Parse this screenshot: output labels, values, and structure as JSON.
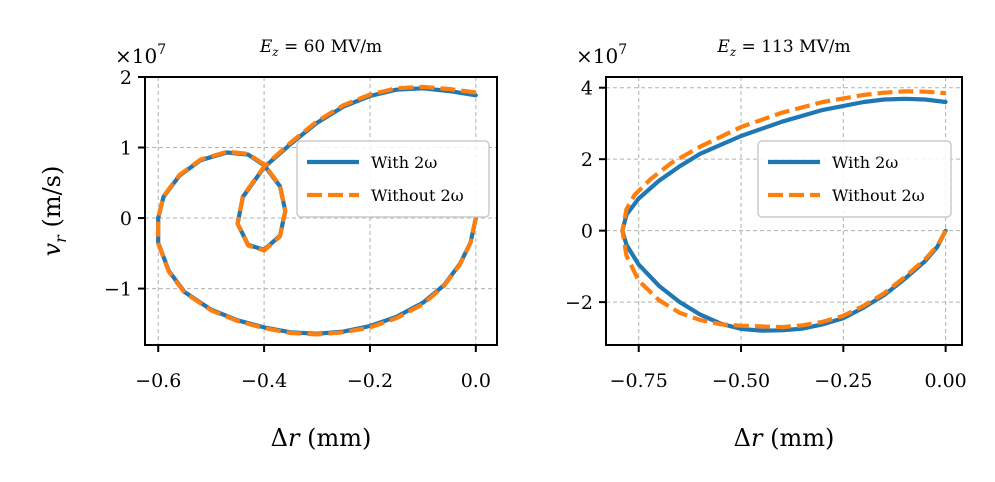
{
  "figure": {
    "background": "#ffffff"
  },
  "chart_data": [
    {
      "type": "line",
      "title": "E_z = 60 MV/m",
      "title_parts": {
        "symbol": "E",
        "sub": "z",
        "rest": " = 60 MV/m"
      },
      "xlabel": "Δr (mm)",
      "xlabel_parts": {
        "symbol": "Δ",
        "var": "r",
        "rest": " (mm)"
      },
      "ylabel": "v_r (m/s)",
      "ylabel_parts": {
        "symbol": "v",
        "sub": "r",
        "rest": " (m/s)"
      },
      "y_offset_text": "×10^7",
      "y_offset_parts": {
        "base": "×10",
        "exp": "7"
      },
      "xlim": [
        -0.625,
        0.04
      ],
      "ylim": [
        -1.8,
        2.0
      ],
      "xticks": [
        -0.6,
        -0.4,
        -0.2,
        0.0
      ],
      "xtick_labels": [
        "−0.6",
        "−0.4",
        "−0.2",
        "0.0"
      ],
      "yticks": [
        -1,
        0,
        1,
        2
      ],
      "ytick_labels": [
        "−1",
        "0",
        "1",
        "2"
      ],
      "grid": true,
      "legend_position": "center-right",
      "series": [
        {
          "name": "With 2ω",
          "style": "solid",
          "color": "#1f77b4",
          "points": [
            [
              0.0,
              0.0
            ],
            [
              -0.01,
              -0.35
            ],
            [
              -0.03,
              -0.65
            ],
            [
              -0.06,
              -0.95
            ],
            [
              -0.1,
              -1.2
            ],
            [
              -0.15,
              -1.4
            ],
            [
              -0.2,
              -1.53
            ],
            [
              -0.25,
              -1.61
            ],
            [
              -0.3,
              -1.64
            ],
            [
              -0.35,
              -1.62
            ],
            [
              -0.4,
              -1.55
            ],
            [
              -0.45,
              -1.45
            ],
            [
              -0.5,
              -1.3
            ],
            [
              -0.55,
              -1.05
            ],
            [
              -0.58,
              -0.75
            ],
            [
              -0.6,
              -0.35
            ],
            [
              -0.6,
              0.0
            ],
            [
              -0.59,
              0.3
            ],
            [
              -0.56,
              0.6
            ],
            [
              -0.52,
              0.82
            ],
            [
              -0.47,
              0.93
            ],
            [
              -0.43,
              0.9
            ],
            [
              -0.4,
              0.75
            ],
            [
              -0.37,
              0.45
            ],
            [
              -0.36,
              0.1
            ],
            [
              -0.37,
              -0.25
            ],
            [
              -0.4,
              -0.45
            ],
            [
              -0.43,
              -0.38
            ],
            [
              -0.45,
              -0.08
            ],
            [
              -0.44,
              0.3
            ],
            [
              -0.4,
              0.72
            ],
            [
              -0.35,
              1.05
            ],
            [
              -0.3,
              1.35
            ],
            [
              -0.25,
              1.58
            ],
            [
              -0.2,
              1.73
            ],
            [
              -0.15,
              1.82
            ],
            [
              -0.1,
              1.84
            ],
            [
              -0.05,
              1.8
            ],
            [
              0.0,
              1.74
            ]
          ]
        },
        {
          "name": "Without 2ω",
          "style": "dashed",
          "color": "#ff7f0e",
          "points": [
            [
              0.0,
              0.0
            ],
            [
              -0.01,
              -0.35
            ],
            [
              -0.03,
              -0.66
            ],
            [
              -0.06,
              -0.96
            ],
            [
              -0.1,
              -1.22
            ],
            [
              -0.15,
              -1.42
            ],
            [
              -0.2,
              -1.55
            ],
            [
              -0.25,
              -1.62
            ],
            [
              -0.3,
              -1.65
            ],
            [
              -0.35,
              -1.63
            ],
            [
              -0.4,
              -1.56
            ],
            [
              -0.45,
              -1.46
            ],
            [
              -0.5,
              -1.31
            ],
            [
              -0.55,
              -1.06
            ],
            [
              -0.58,
              -0.76
            ],
            [
              -0.6,
              -0.36
            ],
            [
              -0.6,
              0.0
            ],
            [
              -0.59,
              0.31
            ],
            [
              -0.56,
              0.61
            ],
            [
              -0.52,
              0.83
            ],
            [
              -0.47,
              0.94
            ],
            [
              -0.43,
              0.91
            ],
            [
              -0.4,
              0.76
            ],
            [
              -0.37,
              0.46
            ],
            [
              -0.36,
              0.1
            ],
            [
              -0.37,
              -0.26
            ],
            [
              -0.4,
              -0.46
            ],
            [
              -0.43,
              -0.39
            ],
            [
              -0.45,
              -0.08
            ],
            [
              -0.44,
              0.31
            ],
            [
              -0.4,
              0.73
            ],
            [
              -0.35,
              1.07
            ],
            [
              -0.3,
              1.37
            ],
            [
              -0.25,
              1.6
            ],
            [
              -0.2,
              1.75
            ],
            [
              -0.15,
              1.84
            ],
            [
              -0.1,
              1.86
            ],
            [
              -0.05,
              1.83
            ],
            [
              0.0,
              1.78
            ]
          ]
        }
      ]
    },
    {
      "type": "line",
      "title": "E_z = 113 MV/m",
      "title_parts": {
        "symbol": "E",
        "sub": "z",
        "rest": " = 113 MV/m"
      },
      "xlabel": "Δr (mm)",
      "xlabel_parts": {
        "symbol": "Δ",
        "var": "r",
        "rest": " (mm)"
      },
      "ylabel": "",
      "ylabel_parts": null,
      "y_offset_text": "×10^7",
      "y_offset_parts": {
        "base": "×10",
        "exp": "7"
      },
      "xlim": [
        -0.83,
        0.04
      ],
      "ylim": [
        -3.2,
        4.3
      ],
      "xticks": [
        -0.75,
        -0.5,
        -0.25,
        0.0
      ],
      "xtick_labels": [
        "−0.75",
        "−0.50",
        "−0.25",
        "0.00"
      ],
      "yticks": [
        -2,
        0,
        2,
        4
      ],
      "ytick_labels": [
        "−2",
        "0",
        "2",
        "4"
      ],
      "grid": true,
      "legend_position": "center-right",
      "series": [
        {
          "name": "With 2ω",
          "style": "solid",
          "color": "#1f77b4",
          "points": [
            [
              0.0,
              0.0
            ],
            [
              -0.02,
              -0.45
            ],
            [
              -0.05,
              -0.85
            ],
            [
              -0.1,
              -1.35
            ],
            [
              -0.15,
              -1.8
            ],
            [
              -0.2,
              -2.15
            ],
            [
              -0.25,
              -2.45
            ],
            [
              -0.3,
              -2.62
            ],
            [
              -0.35,
              -2.74
            ],
            [
              -0.4,
              -2.79
            ],
            [
              -0.45,
              -2.8
            ],
            [
              -0.5,
              -2.75
            ],
            [
              -0.55,
              -2.6
            ],
            [
              -0.6,
              -2.35
            ],
            [
              -0.65,
              -2.0
            ],
            [
              -0.7,
              -1.55
            ],
            [
              -0.75,
              -0.95
            ],
            [
              -0.78,
              -0.4
            ],
            [
              -0.79,
              0.0
            ],
            [
              -0.78,
              0.45
            ],
            [
              -0.75,
              0.9
            ],
            [
              -0.7,
              1.4
            ],
            [
              -0.65,
              1.8
            ],
            [
              -0.6,
              2.15
            ],
            [
              -0.5,
              2.65
            ],
            [
              -0.4,
              3.05
            ],
            [
              -0.3,
              3.38
            ],
            [
              -0.2,
              3.6
            ],
            [
              -0.15,
              3.67
            ],
            [
              -0.1,
              3.69
            ],
            [
              -0.05,
              3.67
            ],
            [
              0.0,
              3.6
            ]
          ]
        },
        {
          "name": "Without 2ω",
          "style": "dashed",
          "color": "#ff7f0e",
          "points": [
            [
              0.0,
              0.0
            ],
            [
              -0.02,
              -0.42
            ],
            [
              -0.05,
              -0.8
            ],
            [
              -0.1,
              -1.3
            ],
            [
              -0.15,
              -1.75
            ],
            [
              -0.2,
              -2.1
            ],
            [
              -0.25,
              -2.38
            ],
            [
              -0.3,
              -2.55
            ],
            [
              -0.35,
              -2.65
            ],
            [
              -0.4,
              -2.7
            ],
            [
              -0.45,
              -2.68
            ],
            [
              -0.5,
              -2.66
            ],
            [
              -0.55,
              -2.62
            ],
            [
              -0.6,
              -2.5
            ],
            [
              -0.65,
              -2.3
            ],
            [
              -0.7,
              -1.95
            ],
            [
              -0.75,
              -1.4
            ],
            [
              -0.78,
              -0.7
            ],
            [
              -0.79,
              0.0
            ],
            [
              -0.78,
              0.6
            ],
            [
              -0.76,
              1.0
            ],
            [
              -0.72,
              1.45
            ],
            [
              -0.67,
              1.9
            ],
            [
              -0.6,
              2.35
            ],
            [
              -0.5,
              2.9
            ],
            [
              -0.4,
              3.3
            ],
            [
              -0.3,
              3.6
            ],
            [
              -0.2,
              3.8
            ],
            [
              -0.15,
              3.86
            ],
            [
              -0.1,
              3.9
            ],
            [
              -0.05,
              3.89
            ],
            [
              0.0,
              3.85
            ]
          ]
        }
      ]
    }
  ]
}
